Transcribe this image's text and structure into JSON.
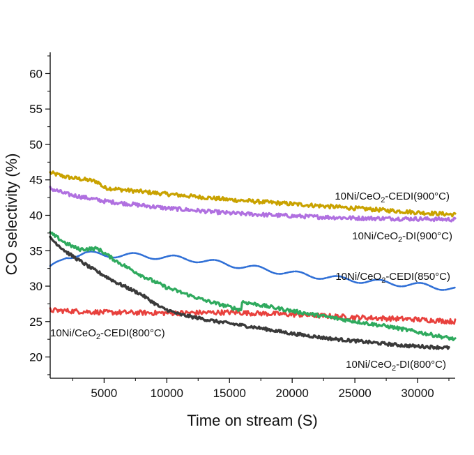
{
  "chart_data": {
    "type": "line",
    "title": "",
    "xlabel": "Time on stream (S)",
    "ylabel": "CO selectivity (%)",
    "xlim": [
      700,
      33000
    ],
    "ylim": [
      17,
      63
    ],
    "xticks": [
      5000,
      10000,
      15000,
      20000,
      25000,
      30000
    ],
    "xtick_labels": [
      "5000",
      "10000",
      "15000",
      "20000",
      "25000",
      "30000"
    ],
    "yticks": [
      20,
      25,
      30,
      35,
      40,
      45,
      50,
      55,
      60
    ],
    "ytick_labels": [
      "20",
      "25",
      "30",
      "35",
      "40",
      "45",
      "50",
      "55",
      "60"
    ],
    "grid": false,
    "legend": "inline labels",
    "series": [
      {
        "name": "10Ni/CeO2-CEDI(900°C)",
        "label_parts": [
          "10Ni/CeO",
          "2",
          "-CEDI(900°C)"
        ],
        "color": "#c9a200",
        "x": [
          700,
          2000,
          4000,
          4500,
          5000,
          7000,
          10000,
          15000,
          20000,
          25000,
          30000,
          33000
        ],
        "y": [
          46.0,
          45.4,
          44.9,
          44.7,
          43.9,
          43.5,
          43.0,
          42.2,
          41.6,
          41.0,
          40.4,
          40.1
        ]
      },
      {
        "name": "10Ni/CeO2-DI(900°C)",
        "label_parts": [
          "10Ni/CeO",
          "2",
          "-DI(900°C)"
        ],
        "color": "#b070e0",
        "x": [
          700,
          2000,
          5000,
          10000,
          15000,
          20000,
          25000,
          30000,
          33000
        ],
        "y": [
          43.8,
          43.0,
          42.0,
          41.0,
          40.3,
          39.9,
          39.6,
          39.5,
          39.4
        ]
      },
      {
        "name": "10Ni/CeO2-CEDI(850°C)",
        "label_parts": [
          "10Ni/CeO",
          "2",
          "-CEDI(850°C)"
        ],
        "color": "#2f6fd6",
        "x": [
          700,
          2000,
          3500,
          5000,
          8000,
          12000,
          16000,
          20000,
          24000,
          28000,
          31000,
          33000
        ],
        "y": [
          32.5,
          34.2,
          34.6,
          34.4,
          34.3,
          33.8,
          32.8,
          31.8,
          31.0,
          30.4,
          30.0,
          29.6
        ]
      },
      {
        "name": "10Ni/CeO2-CEDI(800°C)",
        "label_parts": [
          "10Ni/CeO",
          "2",
          "-CEDI(800°C)"
        ],
        "color": "#e8413d",
        "x": [
          700,
          5000,
          10000,
          15000,
          20000,
          25000,
          30000,
          33000
        ],
        "y": [
          26.6,
          26.3,
          26.2,
          26.3,
          26.0,
          25.6,
          25.3,
          25.0
        ]
      },
      {
        "name": "10Ni/CeO2-DI(800°C)",
        "label_parts": [
          "10Ni/CeO",
          "2",
          "-DI(800°C)"
        ],
        "color": "#3a3a3a",
        "x": [
          700,
          2000,
          4000,
          6000,
          8000,
          9500,
          11000,
          14000,
          17000,
          20000,
          23000,
          26000,
          29000,
          32500
        ],
        "y": [
          36.8,
          34.8,
          32.5,
          30.5,
          28.8,
          27.0,
          26.0,
          25.0,
          24.2,
          23.3,
          22.6,
          22.1,
          21.6,
          21.3
        ]
      },
      {
        "name": "green series",
        "label_parts": null,
        "color": "#2faa5e",
        "x": [
          700,
          2000,
          3000,
          4500,
          6000,
          8000,
          10000,
          13000,
          16000,
          16001,
          20000,
          24000,
          28000,
          33000
        ],
        "y": [
          37.5,
          36.0,
          35.2,
          35.3,
          33.5,
          31.5,
          29.8,
          28.0,
          26.6,
          27.8,
          26.5,
          25.3,
          24.2,
          22.5
        ]
      }
    ]
  }
}
